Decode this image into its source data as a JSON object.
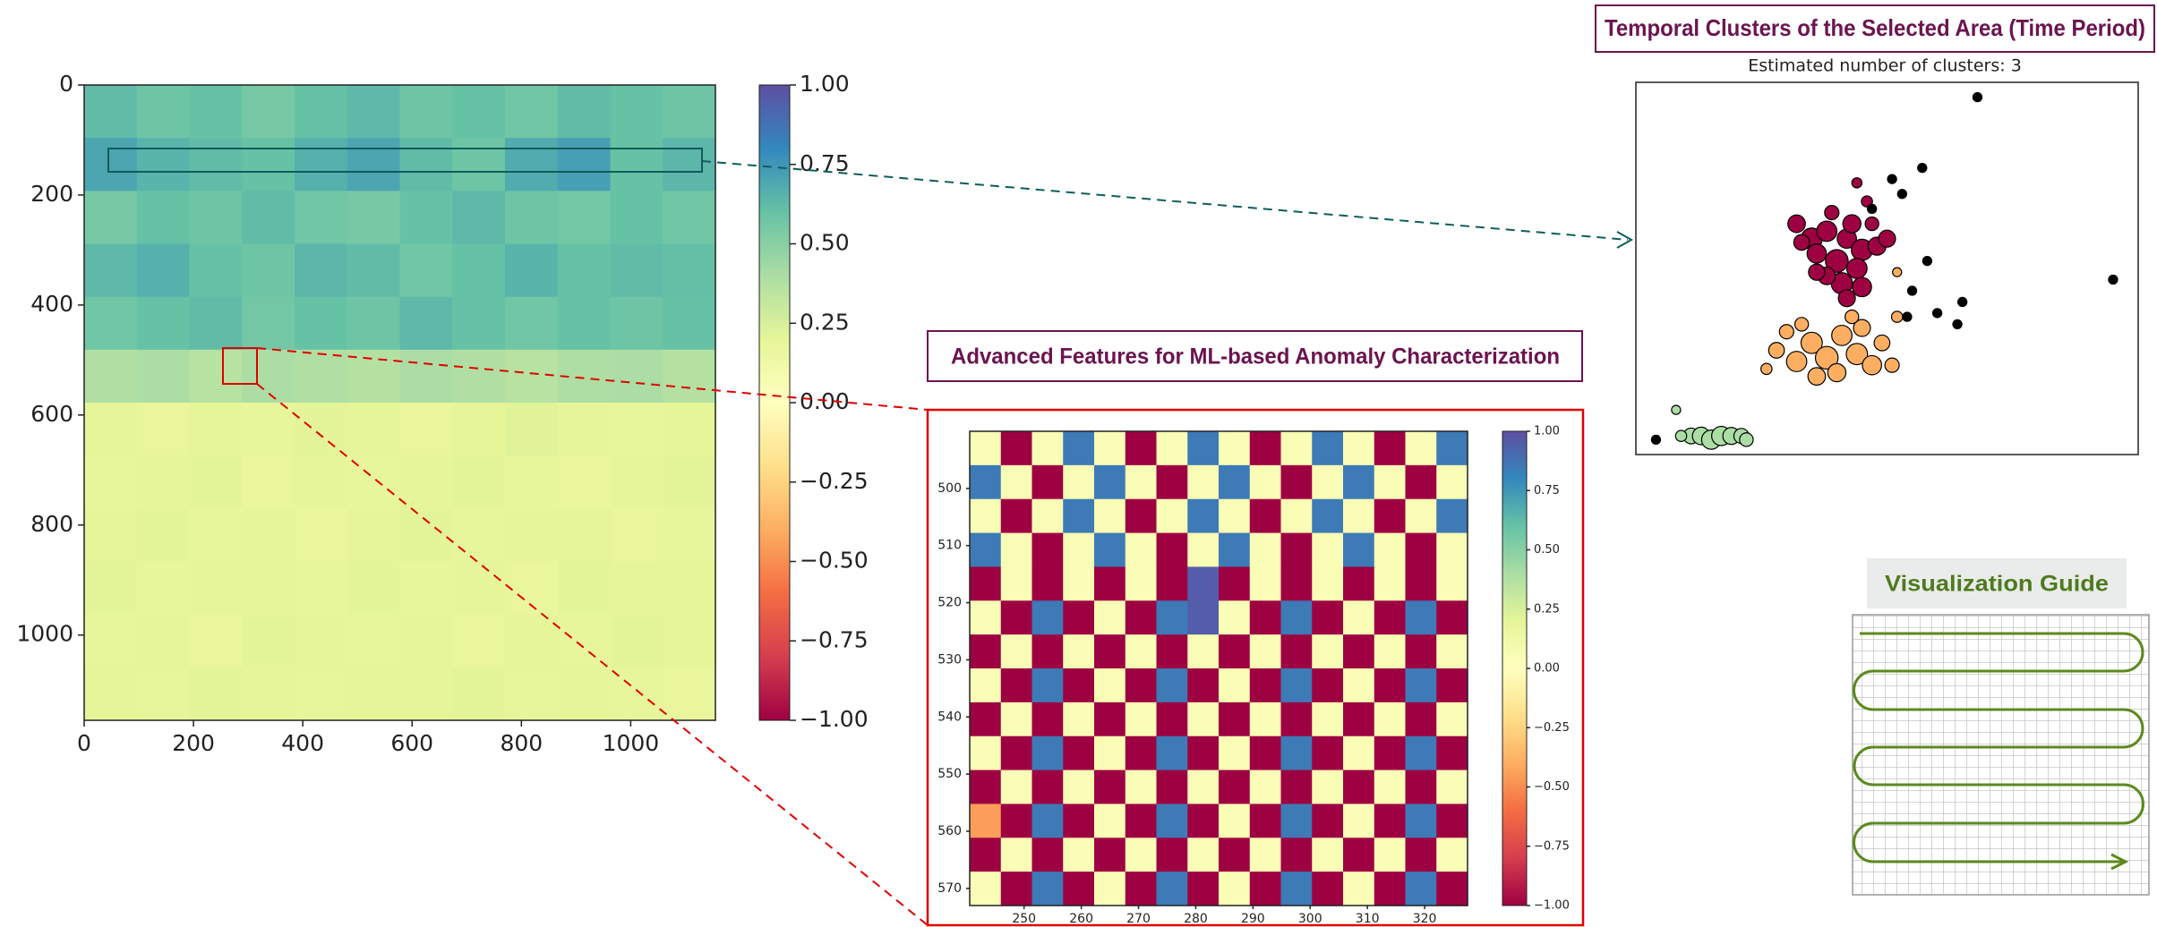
{
  "chart_data": [
    {
      "type": "heatmap",
      "values": [
        [
          0.62,
          0.58,
          0.6,
          0.55,
          0.6,
          0.63,
          0.58,
          0.6,
          0.57,
          0.62,
          0.6,
          0.58
        ],
        [
          0.7,
          0.65,
          0.62,
          0.6,
          0.66,
          0.7,
          0.62,
          0.58,
          0.68,
          0.72,
          0.6,
          0.64
        ],
        [
          0.55,
          0.6,
          0.58,
          0.62,
          0.57,
          0.55,
          0.6,
          0.63,
          0.58,
          0.56,
          0.6,
          0.57
        ],
        [
          0.63,
          0.66,
          0.6,
          0.58,
          0.64,
          0.62,
          0.57,
          0.6,
          0.65,
          0.6,
          0.62,
          0.61
        ],
        [
          0.57,
          0.6,
          0.62,
          0.56,
          0.6,
          0.58,
          0.63,
          0.6,
          0.57,
          0.6,
          0.58,
          0.6
        ],
        [
          0.38,
          0.4,
          0.36,
          0.4,
          0.38,
          0.37,
          0.4,
          0.38,
          0.36,
          0.39,
          0.4,
          0.37
        ],
        [
          0.2,
          0.18,
          0.2,
          0.19,
          0.21,
          0.2,
          0.18,
          0.2,
          0.22,
          0.2,
          0.19,
          0.2
        ],
        [
          0.19,
          0.2,
          0.21,
          0.18,
          0.2,
          0.19,
          0.2,
          0.21,
          0.19,
          0.18,
          0.2,
          0.21
        ],
        [
          0.2,
          0.21,
          0.19,
          0.2,
          0.18,
          0.2,
          0.21,
          0.19,
          0.2,
          0.2,
          0.18,
          0.19
        ],
        [
          0.21,
          0.19,
          0.2,
          0.2,
          0.19,
          0.21,
          0.19,
          0.2,
          0.18,
          0.21,
          0.2,
          0.2
        ],
        [
          0.19,
          0.2,
          0.18,
          0.21,
          0.2,
          0.19,
          0.2,
          0.18,
          0.2,
          0.19,
          0.21,
          0.2
        ],
        [
          0.2,
          0.19,
          0.21,
          0.2,
          0.19,
          0.2,
          0.2,
          0.21,
          0.19,
          0.2,
          0.19,
          0.18
        ]
      ],
      "xlim": [
        0,
        1155
      ],
      "ylim": [
        1155,
        0
      ],
      "xticks": [
        0,
        200,
        400,
        600,
        800,
        1000
      ],
      "yticks": [
        0,
        200,
        400,
        600,
        800,
        1000
      ],
      "colormap": [
        "#9e0142",
        "#d53e4f",
        "#f46d43",
        "#fdae61",
        "#fee08b",
        "#ffffbf",
        "#e6f598",
        "#abdda4",
        "#66c2a5",
        "#3288bd",
        "#5e4fa2"
      ],
      "colorbar": {
        "lim": [
          -1,
          1
        ],
        "ticks": [
          {
            "value": 1,
            "label": "1.00"
          },
          {
            "value": 0.75,
            "label": "0.75"
          },
          {
            "value": 0.5,
            "label": "0.50"
          },
          {
            "value": 0.25,
            "label": "0.25"
          },
          {
            "value": 0,
            "label": "0.00"
          },
          {
            "value": -0.25,
            "label": "−0.25"
          },
          {
            "value": -0.5,
            "label": "−0.50"
          },
          {
            "value": -0.75,
            "label": "−0.75"
          },
          {
            "value": -1,
            "label": "−1.00"
          }
        ]
      }
    },
    {
      "type": "heatmap",
      "title": "Advanced Features for ML-based Anomaly Characterization",
      "values": [
        [
          0.05,
          -1,
          0.05,
          0.85,
          0.05,
          -1,
          0.05,
          0.85,
          0.05,
          -1,
          0.05,
          0.85,
          0.05,
          -1,
          0.05,
          0.85
        ],
        [
          0.85,
          0.05,
          -1,
          0.05,
          0.85,
          0.05,
          -1,
          0.05,
          0.85,
          0.05,
          -1,
          0.05,
          0.85,
          0.05,
          -1,
          0.05
        ],
        [
          0.05,
          -1,
          0.05,
          0.85,
          0.05,
          -1,
          0.05,
          0.85,
          0.05,
          -1,
          0.05,
          0.85,
          0.05,
          -1,
          0.05,
          0.85
        ],
        [
          0.85,
          0.05,
          -1,
          0.05,
          0.85,
          0.05,
          -1,
          0.05,
          0.85,
          0.05,
          -1,
          0.05,
          0.85,
          0.05,
          -1,
          0.05
        ],
        [
          -1,
          0.05,
          -1,
          0.05,
          -1,
          0.05,
          -1,
          0.95,
          -1,
          0.05,
          -1,
          0.05,
          -1,
          0.05,
          -1,
          0.05
        ],
        [
          0.05,
          -1,
          0.85,
          -1,
          0.05,
          -1,
          0.85,
          0.95,
          0.05,
          -1,
          0.85,
          -1,
          0.05,
          -1,
          0.85,
          -1
        ],
        [
          -1,
          0.05,
          -1,
          0.05,
          -1,
          0.05,
          -1,
          0.05,
          -1,
          0.05,
          -1,
          0.05,
          -1,
          0.05,
          -1,
          0.05
        ],
        [
          0.05,
          -1,
          0.85,
          -1,
          0.05,
          -1,
          0.85,
          -1,
          0.05,
          -1,
          0.85,
          -1,
          0.05,
          -1,
          0.85,
          -1
        ],
        [
          -1,
          0.05,
          -1,
          0.05,
          -1,
          0.05,
          -1,
          0.05,
          -1,
          0.05,
          -1,
          0.05,
          -1,
          0.05,
          -1,
          0.05
        ],
        [
          0.05,
          -1,
          0.85,
          -1,
          0.05,
          -1,
          0.85,
          -1,
          0.05,
          -1,
          0.85,
          -1,
          0.05,
          -1,
          0.85,
          -1
        ],
        [
          -1,
          0.05,
          -1,
          0.05,
          -1,
          0.05,
          -1,
          0.05,
          -1,
          0.05,
          -1,
          0.05,
          -1,
          0.05,
          -1,
          0.05
        ],
        [
          -0.45,
          -1,
          0.85,
          -1,
          0.05,
          -1,
          0.85,
          -1,
          0.05,
          -1,
          0.85,
          -1,
          0.05,
          -1,
          0.85,
          -1
        ],
        [
          -1,
          0.05,
          -1,
          0.05,
          -1,
          0.05,
          -1,
          0.05,
          -1,
          0.05,
          -1,
          0.05,
          -1,
          0.05,
          -1,
          0.05
        ],
        [
          0.05,
          -1,
          0.85,
          -1,
          0.05,
          -1,
          0.85,
          -1,
          0.05,
          -1,
          0.85,
          -1,
          0.05,
          -1,
          0.85,
          -1
        ]
      ],
      "xlim": [
        240.5,
        327.5
      ],
      "ylim": [
        573,
        490
      ],
      "xticks": [
        250,
        260,
        270,
        280,
        290,
        300,
        310,
        320
      ],
      "yticks": [
        500,
        510,
        520,
        530,
        540,
        550,
        560,
        570
      ],
      "colormap": [
        "#9e0142",
        "#d53e4f",
        "#f46d43",
        "#fdae61",
        "#fee08b",
        "#ffffbf",
        "#e6f598",
        "#abdda4",
        "#66c2a5",
        "#3288bd",
        "#5e4fa2"
      ],
      "colorbar": {
        "lim": [
          -1,
          1
        ],
        "ticks": [
          {
            "value": 1,
            "label": "1.00"
          },
          {
            "value": 0.75,
            "label": "0.75"
          },
          {
            "value": 0.5,
            "label": "0.50"
          },
          {
            "value": 0.25,
            "label": "0.25"
          },
          {
            "value": 0,
            "label": "0.00"
          },
          {
            "value": -0.25,
            "label": "−0.25"
          },
          {
            "value": -0.5,
            "label": "−0.50"
          },
          {
            "value": -0.75,
            "label": "−0.75"
          },
          {
            "value": -1,
            "label": "−1.00"
          }
        ]
      }
    },
    {
      "type": "scatter",
      "title": "Temporal Clusters of the Selected Area (Time Period)",
      "subtitle": "Estimated number of clusters: 3",
      "xlim": [
        0,
        100
      ],
      "ylim": [
        0,
        100
      ],
      "series": [
        {
          "color": "#9e0142",
          "x": [
            32,
            35,
            38,
            42,
            45,
            40,
            36,
            44,
            48,
            41,
            38,
            45,
            33,
            47,
            50,
            43,
            39,
            36,
            42,
            46,
            44
          ],
          "y": [
            62,
            58,
            60,
            58,
            55,
            52,
            54,
            50,
            56,
            46,
            48,
            45,
            57,
            62,
            58,
            62,
            65,
            49,
            42,
            68,
            73
          ],
          "sizes": [
            150,
            220,
            200,
            180,
            220,
            250,
            180,
            200,
            160,
            220,
            150,
            180,
            120,
            90,
            140,
            160,
            100,
            130,
            140,
            60,
            50
          ]
        },
        {
          "color": "#fdae61",
          "x": [
            28,
            32,
            35,
            38,
            41,
            44,
            47,
            40,
            36,
            30,
            45,
            49,
            43,
            26,
            51,
            52,
            33,
            52
          ],
          "y": [
            28,
            25,
            30,
            26,
            32,
            27,
            24,
            22,
            21,
            33,
            34,
            30,
            37,
            23,
            24,
            37,
            35,
            49
          ],
          "sizes": [
            120,
            200,
            220,
            250,
            200,
            220,
            180,
            160,
            150,
            100,
            140,
            120,
            90,
            60,
            100,
            60,
            90,
            40
          ]
        },
        {
          "color": "#abdda4",
          "x": [
            11,
            13,
            15,
            17,
            19,
            21,
            22,
            9,
            8
          ],
          "y": [
            5,
            5,
            4,
            5,
            5,
            5,
            4,
            5,
            12
          ],
          "sizes": [
            120,
            150,
            180,
            180,
            140,
            110,
            90,
            60,
            40
          ]
        },
        {
          "color": "#000000",
          "x": [
            68,
            95,
            4,
            57,
            58,
            65,
            64,
            60,
            55,
            54,
            47,
            51,
            53
          ],
          "y": [
            96,
            47,
            4,
            77,
            52,
            41,
            35,
            38,
            44,
            37,
            66,
            74,
            70
          ],
          "sizes": [
            40,
            40,
            40,
            40,
            40,
            40,
            40,
            40,
            40,
            40,
            40,
            40,
            40
          ]
        }
      ]
    }
  ],
  "guide": {
    "title": "Visualization Guide"
  }
}
